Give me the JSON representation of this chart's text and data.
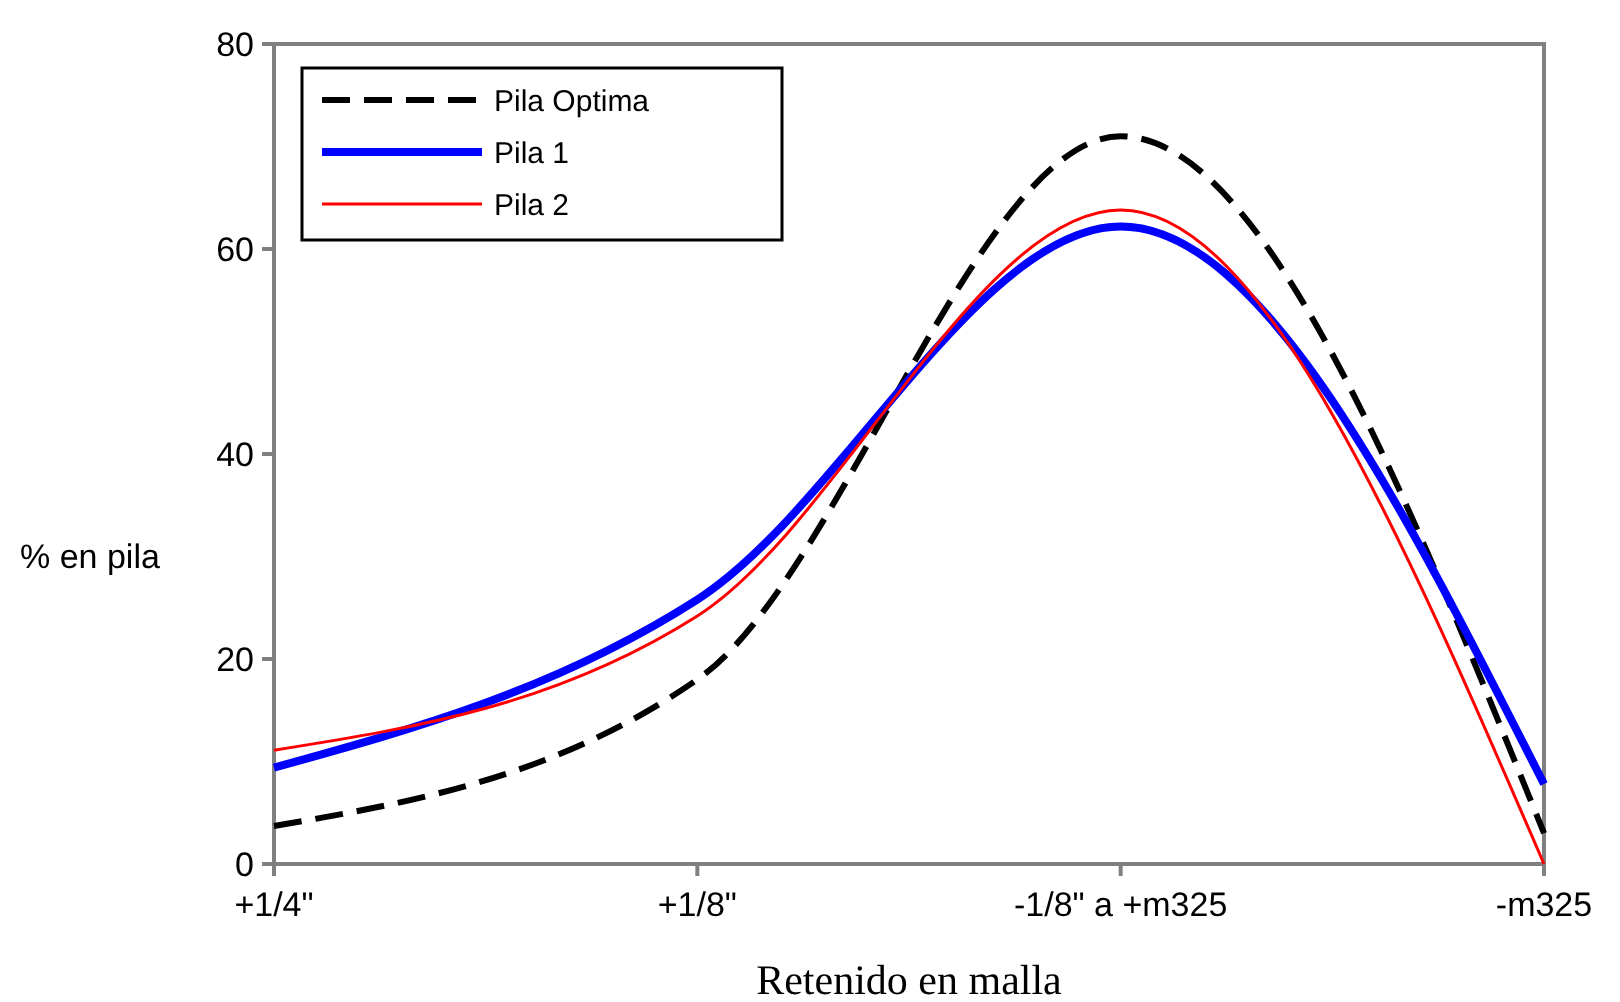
{
  "chart_data": {
    "type": "line",
    "xlabel": "Retenido en malla",
    "ylabel": "% en pila",
    "categories": [
      "+1/4\"",
      "+1/8\"",
      "-1/8\" a +m325",
      "-m325"
    ],
    "series": [
      {
        "name": "Pila Optima",
        "color": "#000000",
        "line_style": "dashed",
        "values": [
          3.7,
          18,
          71,
          3
        ]
      },
      {
        "name": "Pila 1",
        "color": "#0000ff",
        "line_style": "solid",
        "values": [
          9.4,
          25.8,
          62.2,
          7.8
        ]
      },
      {
        "name": "Pila 2",
        "color": "#ff0000",
        "line_style": "solid",
        "values": [
          11.1,
          24.2,
          63.8,
          0
        ]
      }
    ],
    "ylim": [
      0,
      80
    ],
    "yticks": [
      0,
      20,
      40,
      60,
      80
    ],
    "grid": false,
    "legend": "top left",
    "marker": "none"
  }
}
